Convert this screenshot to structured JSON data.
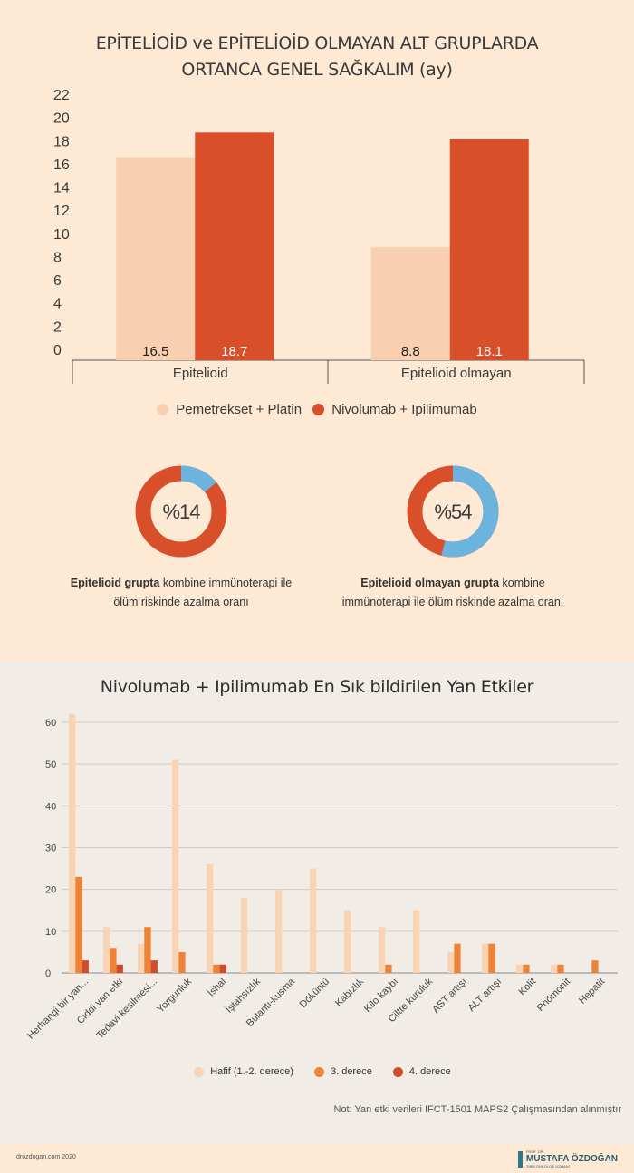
{
  "chart_data": [
    {
      "type": "bar",
      "title_line1": "EPİTELİOİD ve EPİTELİOİD OLMAYAN ALT GRUPLARDA",
      "title_line2": "ORTANCA GENEL SAĞKALIM (ay)",
      "categories": [
        "Epitelioid",
        "Epitelioid olmayan"
      ],
      "series": [
        {
          "name": "Pemetrekset + Platin",
          "values": [
            16.5,
            8.8
          ],
          "color": "#f8cfb0",
          "labels": [
            "16.5",
            "8.8"
          ]
        },
        {
          "name": "Nivolumab + Ipilimumab",
          "values": [
            18.7,
            18.1
          ],
          "color": "#d84f2a",
          "labels": [
            "18.7",
            "18.1"
          ]
        }
      ],
      "yticks": [
        "0",
        "2",
        "4",
        "6",
        "8",
        "10",
        "12",
        "14",
        "16",
        "18",
        "20",
        "22"
      ],
      "ylim": [
        0,
        22
      ],
      "legend": "bottom"
    },
    {
      "type": "pie",
      "donuts": [
        {
          "value": 14,
          "label": "%14",
          "caption_bold": "Epitelioid grupta",
          "caption_rest": " kombine immünoterapi ile ölüm riskinde  azalma oranı"
        },
        {
          "value": 54,
          "label": "%54",
          "caption_bold": "Epitelioid olmayan grupta",
          "caption_rest": " kombine immünoterapi ile ölüm riskinde  azalma oranı"
        }
      ],
      "colors": {
        "highlight": "#6cb4de",
        "rest": "#d84f2a"
      }
    },
    {
      "type": "bar",
      "title": "Nivolumab + Ipilimumab En Sık bildirilen Yan Etkiler",
      "categories": [
        "Herhangi bir yan...",
        "Ciddi yan etki",
        "Tedavi kesilmesi...",
        "Yorgunluk",
        "İshal",
        "İştahsızlık",
        "Bulantı-kusma",
        "Döküntü",
        "Kabızlık",
        "Kilo kaybı",
        "Ciltte kuruluk",
        "AST artışı",
        "ALT artışı",
        "Kolit",
        "Pnömonit",
        "Hepatit"
      ],
      "series": [
        {
          "name": "Hafif (1.-2. derece)",
          "values": [
            62,
            11,
            7,
            51,
            26,
            18,
            20,
            25,
            15,
            11,
            15,
            5,
            7,
            2,
            2,
            0
          ],
          "color": "#f8d3b4"
        },
        {
          "name": "3. derece",
          "values": [
            23,
            6,
            11,
            5,
            2,
            0,
            0,
            0,
            0,
            2,
            0,
            7,
            7,
            2,
            2,
            3
          ],
          "color": "#ef8234"
        },
        {
          "name": "4. derece",
          "values": [
            3,
            2,
            3,
            0,
            2,
            0,
            0,
            0,
            0,
            0,
            0,
            0,
            0,
            0,
            0,
            0
          ],
          "color": "#d24b2b"
        }
      ],
      "yticks": [
        "0",
        "10",
        "20",
        "30",
        "40",
        "50",
        "60"
      ],
      "ylim": [
        0,
        60
      ],
      "legend": "bottom"
    }
  ],
  "note": "Not: Yan etki verileri IFCT-1501 MAPS2 Çalışmasından alınmıştır",
  "footer": {
    "site": "drozdogan.com 2020",
    "logo_small_top": "PROF. DR.",
    "logo_name": "MUSTAFA ÖZDOĞAN",
    "logo_small_bottom": "TIBBİ ONKOLOJİ UZMANI"
  }
}
